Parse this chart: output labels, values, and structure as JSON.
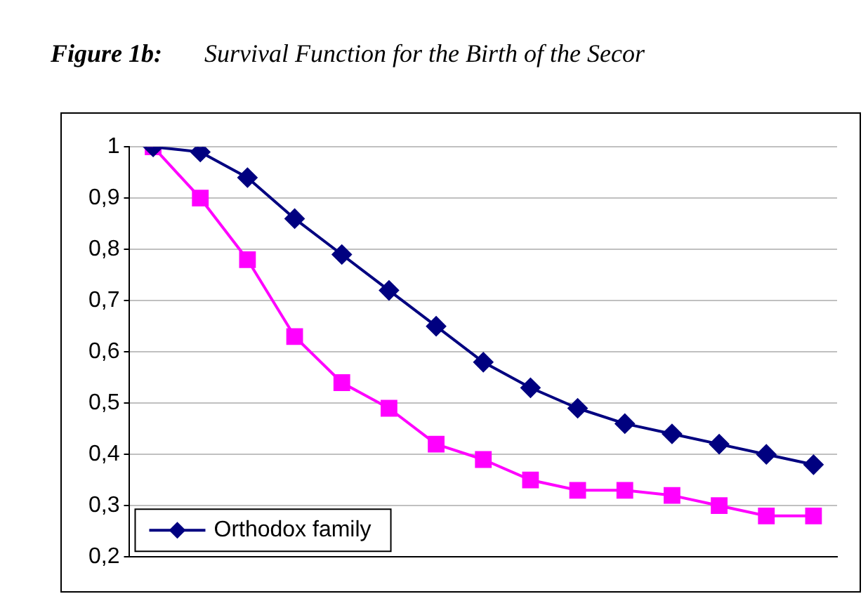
{
  "chart_data": {
    "type": "line",
    "title": "Figure 1b:",
    "subtitle": "Survival Function for the Birth of the Secor",
    "categories": [
      null,
      null,
      null,
      null,
      null,
      null,
      null,
      null,
      null,
      null,
      null,
      null,
      null,
      null,
      null
    ],
    "series": [
      {
        "name": "Orthodox family",
        "color": "#000080",
        "marker": "diamond",
        "values": [
          1,
          0.99,
          0.94,
          0.86,
          0.79,
          0.72,
          0.65,
          0.58,
          0.53,
          0.49,
          0.46,
          0.44,
          0.42,
          0.4,
          0.38
        ]
      },
      {
        "color": "#ff00ff",
        "marker": "square",
        "values": [
          1,
          0.9,
          0.78,
          0.63,
          0.54,
          0.49,
          0.42,
          0.39,
          0.35,
          0.33,
          0.33,
          0.32,
          0.3,
          0.28,
          0.28
        ]
      }
    ],
    "ylim": [
      0.2,
      1
    ],
    "yticks": [
      {
        "value": 0.2,
        "label": "0,2"
      },
      {
        "value": 0.3,
        "label": "0,3"
      },
      {
        "value": 0.4,
        "label": "0,4"
      },
      {
        "value": 0.5,
        "label": "0,5"
      },
      {
        "value": 0.6,
        "label": "0,6"
      },
      {
        "value": 0.7,
        "label": "0,7"
      },
      {
        "value": 0.8,
        "label": "0,8"
      },
      {
        "value": 0.9,
        "label": "0,9"
      },
      {
        "value": 1,
        "label": "1"
      }
    ],
    "grid": "y",
    "legend": "bottom left"
  }
}
